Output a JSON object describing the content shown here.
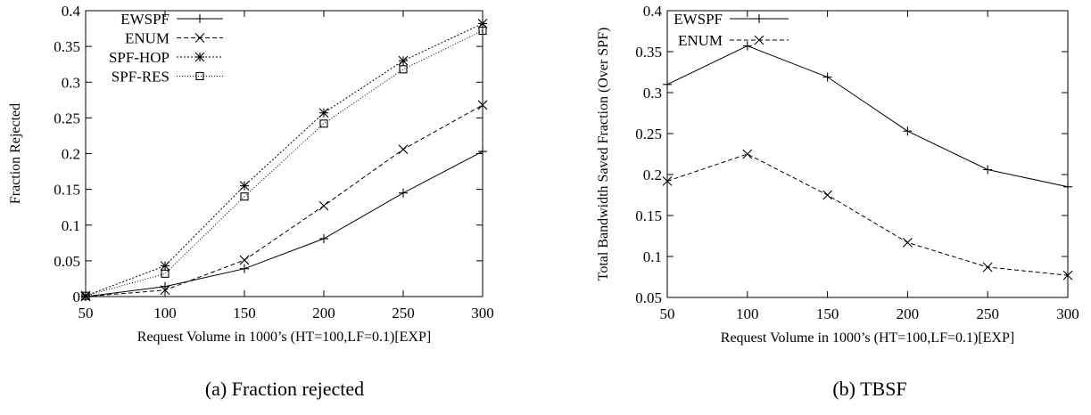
{
  "chart_data": [
    {
      "type": "line",
      "caption": "(a) Fraction rejected",
      "xlabel": "Request Volume in 1000’s (HT=100,LF=0.1)[EXP]",
      "ylabel": "Fraction Rejected",
      "x": [
        50,
        100,
        150,
        200,
        250,
        300
      ],
      "xticks": [
        "50",
        "100",
        "150",
        "200",
        "250",
        "300"
      ],
      "yticks": [
        "0",
        "0.05",
        "0.1",
        "0.15",
        "0.2",
        "0.25",
        "0.3",
        "0.35",
        "0.4"
      ],
      "xlim": [
        50,
        300
      ],
      "ylim": [
        0,
        0.4
      ],
      "legend_position": "top-left",
      "series": [
        {
          "name": "EWSPF",
          "marker": "plus",
          "dash": "solid",
          "values": [
            0.0,
            0.014,
            0.039,
            0.081,
            0.145,
            0.203
          ]
        },
        {
          "name": "ENUM",
          "marker": "x",
          "dash": "dashed",
          "values": [
            0.0,
            0.009,
            0.051,
            0.127,
            0.206,
            0.268
          ]
        },
        {
          "name": "SPF-HOP",
          "marker": "star",
          "dash": "dotted",
          "values": [
            0.001,
            0.043,
            0.155,
            0.257,
            0.33,
            0.382
          ]
        },
        {
          "name": "SPF-RES",
          "marker": "square",
          "dash": "fine-dotted",
          "values": [
            0.001,
            0.032,
            0.14,
            0.242,
            0.318,
            0.372
          ]
        }
      ]
    },
    {
      "type": "line",
      "caption": "(b) TBSF",
      "xlabel": "Request Volume in 1000’s (HT=100,LF=0.1)[EXP]",
      "ylabel": "Total Bandwidth Saved Fraction (Over SPF)",
      "x": [
        50,
        100,
        150,
        200,
        250,
        300
      ],
      "xticks": [
        "50",
        "100",
        "150",
        "200",
        "250",
        "300"
      ],
      "yticks": [
        "0.05",
        "0.1",
        "0.15",
        "0.2",
        "0.25",
        "0.3",
        "0.35",
        "0.4"
      ],
      "xlim": [
        50,
        300
      ],
      "ylim": [
        0.05,
        0.4
      ],
      "legend_position": "top-left",
      "series": [
        {
          "name": "EWSPF",
          "marker": "plus",
          "dash": "solid",
          "values": [
            0.31,
            0.357,
            0.319,
            0.253,
            0.206,
            0.185
          ]
        },
        {
          "name": "ENUM",
          "marker": "x",
          "dash": "dashed",
          "values": [
            0.192,
            0.225,
            0.175,
            0.117,
            0.087,
            0.077
          ]
        }
      ]
    }
  ]
}
